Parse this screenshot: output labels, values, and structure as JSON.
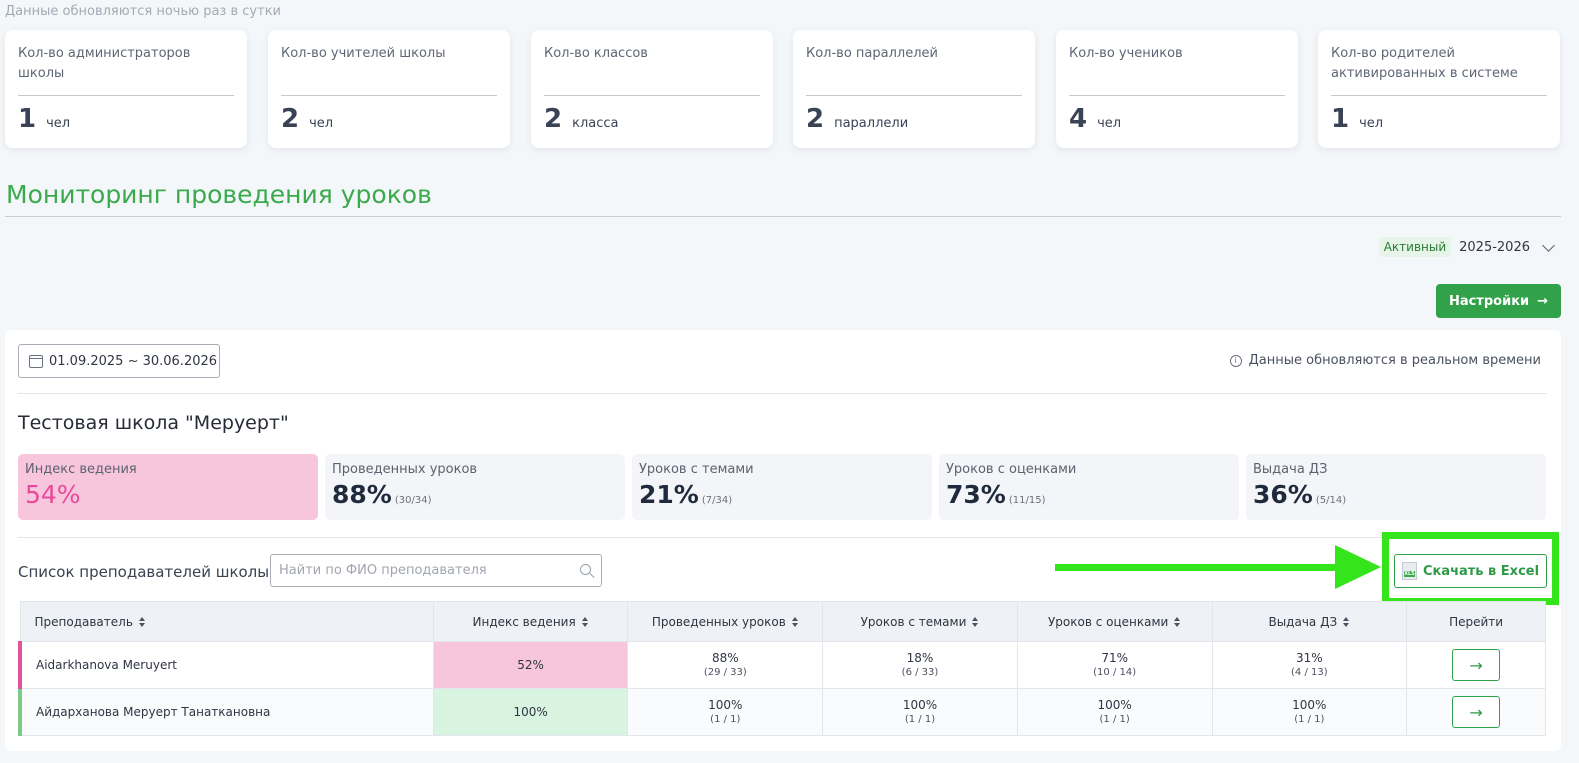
{
  "top_note": "Данные обновляются ночью раз в сутки",
  "stats": [
    {
      "label": "Кол-во администраторов школы",
      "value": "1",
      "unit": "чел"
    },
    {
      "label": "Кол-во учителей школы",
      "value": "2",
      "unit": "чел"
    },
    {
      "label": "Кол-во классов",
      "value": "2",
      "unit": "класса"
    },
    {
      "label": "Кол-во параллелей",
      "value": "2",
      "unit": "параллели"
    },
    {
      "label": "Кол-во учеников",
      "value": "4",
      "unit": "чел"
    },
    {
      "label": "Кол-во родителей активированных в системе",
      "value": "1",
      "unit": "чел"
    }
  ],
  "section_title": "Мониторинг проведения уроков",
  "year_selector": {
    "badge": "Активный",
    "value": "2025-2026"
  },
  "settings_button": "Настройки",
  "date_range": "01.09.2025 ~ 30.06.2026",
  "realtime_note": "Данные обновляются в реальном времени",
  "school_name": "Тестовая школа \"Меруерт\"",
  "metrics": [
    {
      "label": "Индекс ведения",
      "pct": "54%",
      "frac": ""
    },
    {
      "label": "Проведенных уроков",
      "pct": "88%",
      "frac": "(30/34)"
    },
    {
      "label": "Уроков с темами",
      "pct": "21%",
      "frac": "(7/34)"
    },
    {
      "label": "Уроков с оценками",
      "pct": "73%",
      "frac": "(11/15)"
    },
    {
      "label": "Выдача ДЗ",
      "pct": "36%",
      "frac": "(5/14)"
    }
  ],
  "list_title": "Список преподавателей школы",
  "search_placeholder": "Найти по ФИО преподавателя",
  "excel_button": "Скачать в Excel",
  "table": {
    "headers": [
      "Преподаватель",
      "Индекс ведения",
      "Проведенных уроков",
      "Уроков с темами",
      "Уроков с оценками",
      "Выдача ДЗ",
      "Перейти"
    ],
    "rows": [
      {
        "name": "Aidarkhanova Meruyert",
        "index": "52%",
        "lessons": {
          "pct": "88%",
          "frac": "(29 / 33)"
        },
        "topics": {
          "pct": "18%",
          "frac": "(6 / 33)"
        },
        "grades": {
          "pct": "71%",
          "frac": "(10 / 14)"
        },
        "hw": {
          "pct": "31%",
          "frac": "(4 / 13)"
        }
      },
      {
        "name": "Айдарханова Меруерт Танаткановна",
        "index": "100%",
        "lessons": {
          "pct": "100%",
          "frac": "(1 / 1)"
        },
        "topics": {
          "pct": "100%",
          "frac": "(1 / 1)"
        },
        "grades": {
          "pct": "100%",
          "frac": "(1 / 1)"
        },
        "hw": {
          "pct": "100%",
          "frac": "(1 / 1)"
        }
      }
    ]
  },
  "colors": {
    "accent_green": "#31a14a",
    "highlight": "#33e51a",
    "pink": "#f8c6dc",
    "title_green": "#3aaa4c"
  },
  "icons": {
    "calendar": "calendar-icon",
    "info": "info-icon",
    "search": "search-icon",
    "excel": "xls-file-icon",
    "arrow": "arrow-right-icon",
    "chevron": "chevron-down-icon"
  }
}
